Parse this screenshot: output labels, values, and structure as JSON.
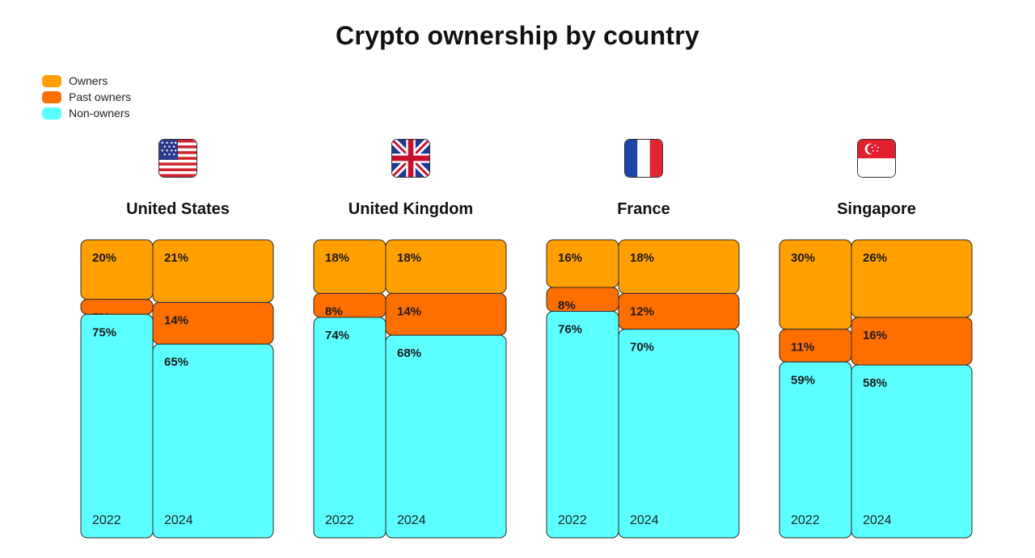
{
  "title": "Crypto ownership by country",
  "legend": [
    {
      "label": "Owners",
      "color": "#ff9f00"
    },
    {
      "label": "Past owners",
      "color": "#ff6f00"
    },
    {
      "label": "Non-owners",
      "color": "#5cffff"
    }
  ],
  "countries": [
    {
      "name": "United States",
      "flag_icon": "us-flag-icon"
    },
    {
      "name": "United Kingdom",
      "flag_icon": "uk-flag-icon"
    },
    {
      "name": "France",
      "flag_icon": "france-flag-icon"
    },
    {
      "name": "Singapore",
      "flag_icon": "singapore-flag-icon"
    }
  ],
  "chart_data": {
    "type": "bar",
    "title": "Crypto ownership by country",
    "categories": [
      "United States",
      "United Kingdom",
      "France",
      "Singapore"
    ],
    "years": [
      "2022",
      "2024"
    ],
    "series": [
      {
        "name": "Owners",
        "values": {
          "United States": [
            20,
            21
          ],
          "United Kingdom": [
            18,
            18
          ],
          "France": [
            16,
            18
          ],
          "Singapore": [
            30,
            26
          ]
        }
      },
      {
        "name": "Past owners",
        "values": {
          "United States": [
            5,
            14
          ],
          "United Kingdom": [
            8,
            14
          ],
          "France": [
            8,
            12
          ],
          "Singapore": [
            11,
            16
          ]
        }
      },
      {
        "name": "Non-owners",
        "values": {
          "United States": [
            75,
            65
          ],
          "United Kingdom": [
            74,
            68
          ],
          "France": [
            76,
            70
          ],
          "Singapore": [
            59,
            58
          ]
        }
      }
    ],
    "colors": {
      "Owners": "#ff9f00",
      "Past owners": "#ff6f00",
      "Non-owners": "#5cffff"
    },
    "stroke": "#2b2b2b",
    "legend_position": "top-left"
  }
}
